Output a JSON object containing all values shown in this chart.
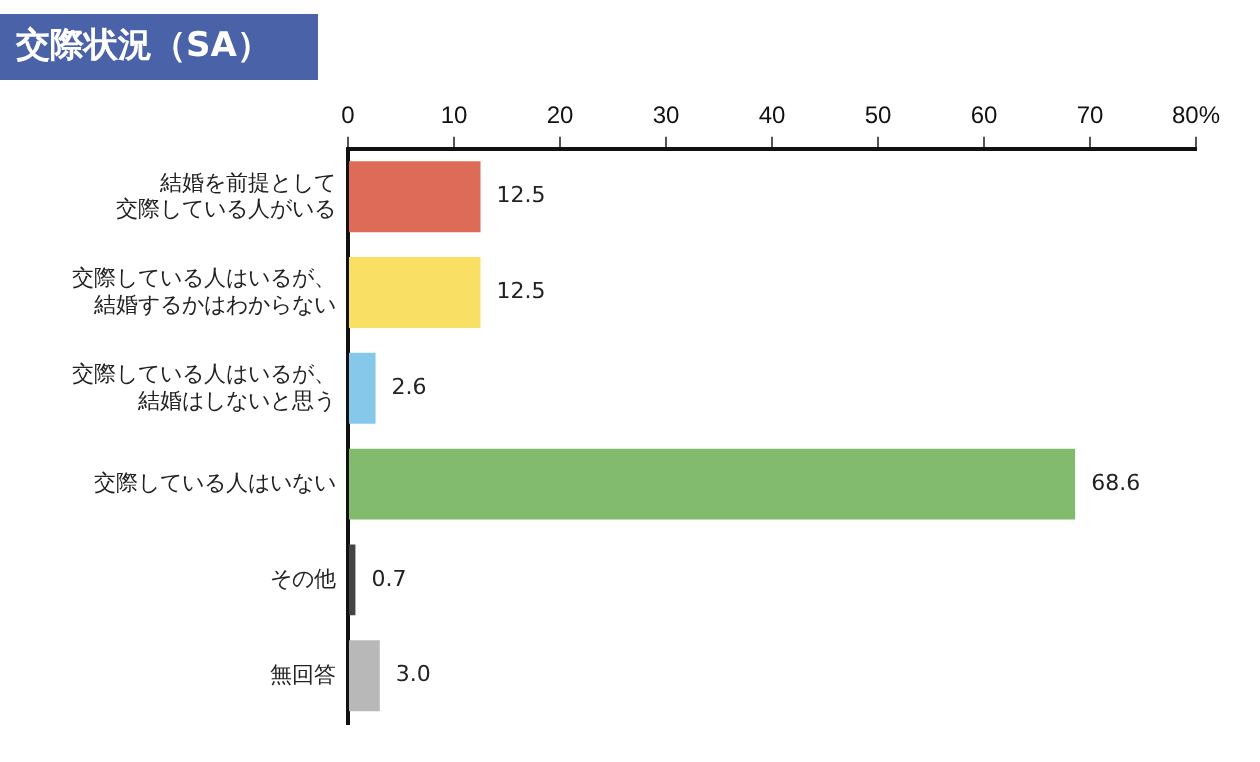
{
  "chart_data": {
    "type": "bar",
    "orientation": "horizontal",
    "title": "交際状況（SA）",
    "categories": [
      "結婚を前提として交際している人がいる",
      "交際している人はいるが、結婚するかはわからない",
      "交際している人はいるが、結婚はしないと思う",
      "交際している人はいない",
      "その他",
      "無回答"
    ],
    "values": [
      12.5,
      12.5,
      2.6,
      68.6,
      0.7,
      3.0
    ],
    "value_labels": [
      "12.5",
      "12.5",
      "2.6",
      "68.6",
      "0.7",
      "3.0"
    ],
    "colors": [
      "#dd6b58",
      "#f9df63",
      "#86c8ea",
      "#82bb6e",
      "#444444",
      "#b8b8b8"
    ],
    "xlim": [
      0,
      80
    ],
    "xticks": [
      0,
      10,
      20,
      30,
      40,
      50,
      60,
      70,
      {
        "value": 80,
        "label": "80%"
      }
    ],
    "grid": false,
    "legend": false
  }
}
